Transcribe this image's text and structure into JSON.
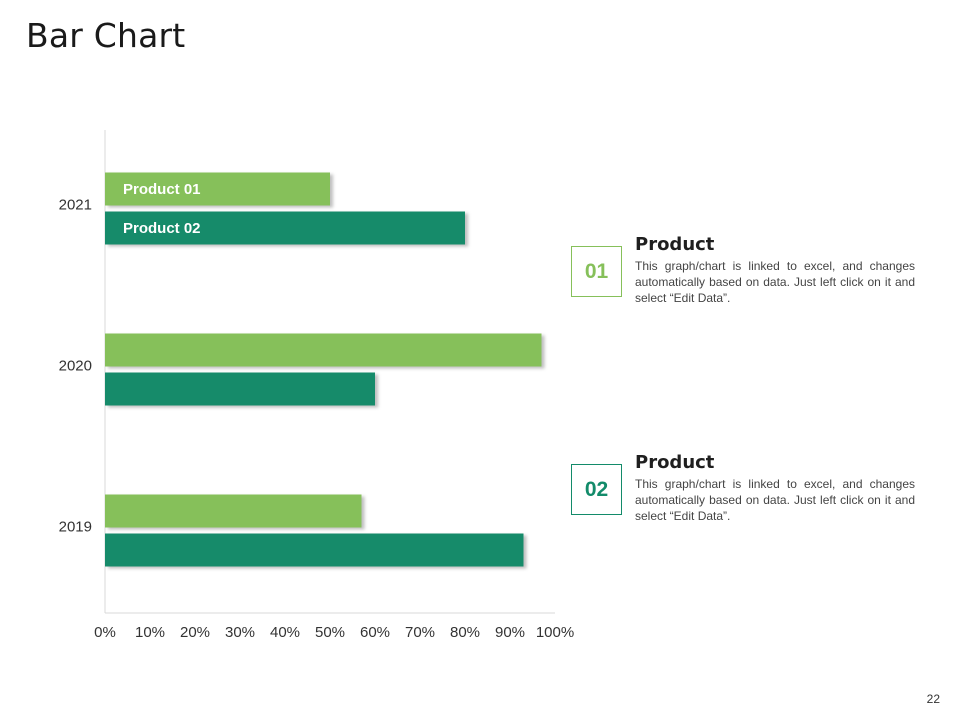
{
  "slide": {
    "title": "Bar Chart",
    "page_number": "22"
  },
  "colors": {
    "product01": "#86c05a",
    "product02": "#138b6a",
    "axis": "#d9d9d9"
  },
  "cards": [
    {
      "number": "01",
      "title": "Product",
      "text": "This graph/chart is linked to excel, and changes automatically based on data. Just left click on it and select “Edit Data”."
    },
    {
      "number": "02",
      "title": "Product",
      "text": "This graph/chart is linked to excel, and changes automatically based on data. Just left click on it and select “Edit Data”."
    }
  ],
  "chart_data": {
    "type": "bar",
    "orientation": "horizontal",
    "title": "",
    "xlabel": "",
    "ylabel": "",
    "categories": [
      "2021",
      "2020",
      "2019"
    ],
    "series": [
      {
        "name": "Product 01",
        "values": [
          50,
          97,
          57
        ]
      },
      {
        "name": "Product 02",
        "values": [
          80,
          60,
          93
        ]
      }
    ],
    "xlim": [
      0,
      100
    ],
    "x_tick_labels": [
      "0%",
      "10%",
      "20%",
      "30%",
      "40%",
      "50%",
      "60%",
      "70%",
      "80%",
      "90%",
      "100%"
    ],
    "grid": false,
    "legend": "inside-bars-top"
  }
}
